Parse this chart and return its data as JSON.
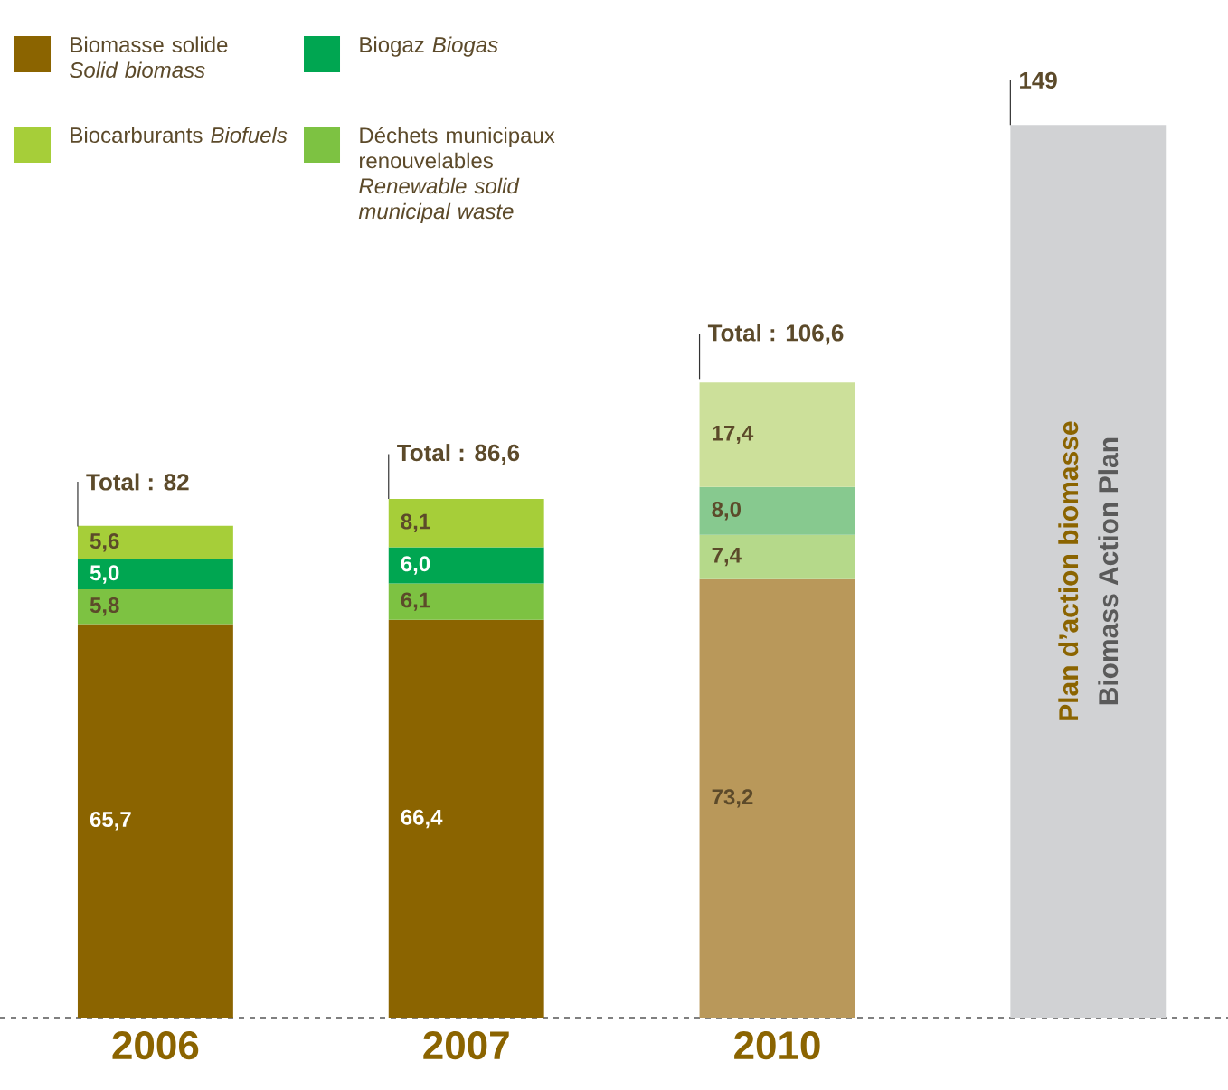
{
  "chart_data": {
    "type": "bar",
    "stacked": true,
    "legend": "top left",
    "categories": [
      "2006",
      "2007",
      "2010",
      null
    ],
    "series": [
      {
        "name": "Biomasse solide *Solid biomass*",
        "color": "#8b6400",
        "colors": [
          "#8b6400",
          "#8b6400",
          "#b9985a",
          null
        ],
        "values": [
          65.7,
          66.4,
          73.2,
          null
        ],
        "value_labels": [
          "65,7",
          "66,4",
          "73,2",
          null
        ]
      },
      {
        "name": "Déchets municipaux renouvelables *Renewable solid municipal waste*",
        "color": "#7dc242",
        "colors": [
          "#7dc242",
          "#7dc242",
          "#b5d98a",
          null
        ],
        "values": [
          5.8,
          6.1,
          7.4,
          null
        ],
        "value_labels": [
          "5,8",
          "6,1",
          "7,4",
          null
        ]
      },
      {
        "name": "Biogaz *Biogas*",
        "color": "#00a651",
        "colors": [
          "#00a651",
          "#00a651",
          "#87c98f",
          null
        ],
        "values": [
          5.0,
          6.0,
          8.0,
          null
        ],
        "value_labels": [
          "5,0",
          "6,0",
          "8,0",
          null
        ]
      },
      {
        "name": "Biocarburants *Biofuels*",
        "color": "#a6ce39",
        "colors": [
          "#a6ce39",
          "#a6ce39",
          "#cce09a",
          null
        ],
        "values": [
          5.6,
          8.1,
          17.4,
          null
        ],
        "value_labels": [
          "5,6",
          "8,1",
          "17,4",
          null
        ]
      },
      {
        "color": "#d1d2d4",
        "values": [
          null,
          null,
          null,
          149
        ]
      }
    ],
    "annotations": [
      "Plan d’action biomasse",
      "Biomass Action Plan",
      {
        "text": "Total : 82",
        "x": "2006",
        "y": 82
      },
      {
        "text": "Total : 86,6",
        "x": "2007",
        "y": 86.6
      },
      {
        "text": "Total : 106,6",
        "x": "2010",
        "y": 106.6
      },
      {
        "text": "149",
        "y": 149
      }
    ]
  }
}
